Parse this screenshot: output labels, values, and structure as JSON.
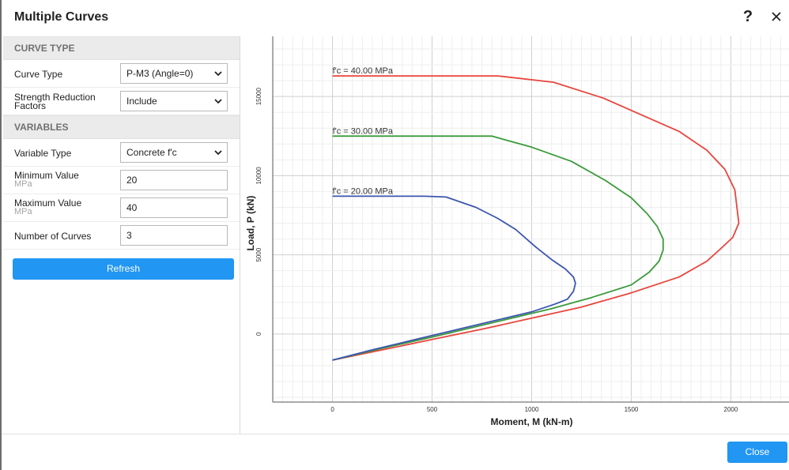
{
  "dialog": {
    "title": "Multiple Curves",
    "help_label": "?",
    "close_label": "Close"
  },
  "left_panel": {
    "curve_type_section": "CURVE TYPE",
    "curve_type_label": "Curve Type",
    "curve_type_value": "P-M3 (Angle=0)",
    "srf_label": "Strength Reduction Factors",
    "srf_label_line1": "Strength Reduction",
    "srf_label_line2": "Factors",
    "srf_value": "Include",
    "variables_section": "VARIABLES",
    "variable_type_label": "Variable Type",
    "variable_type_value": "Concrete f'c",
    "min_label": "Minimum Value",
    "min_unit": "MPa",
    "min_value": "20",
    "max_label": "Maximum Value",
    "max_unit": "MPa",
    "max_value": "40",
    "num_curves_label": "Number of Curves",
    "num_curves_value": "3",
    "refresh_label": "Refresh"
  },
  "colors": {
    "accent": "#2196f3",
    "series_40": "#e8453c",
    "series_30": "#3a9a3a",
    "series_20": "#3b55b0"
  },
  "chart_data": {
    "type": "line",
    "xlabel": "Moment, M (kN-m)",
    "ylabel": "Load, P (kN)",
    "xlim": [
      -300,
      2300
    ],
    "ylim": [
      -4300,
      18800
    ],
    "x_ticks": [
      0,
      500,
      1000,
      1500,
      2000
    ],
    "y_ticks": [
      0,
      5000,
      10000,
      15000
    ],
    "grid": true,
    "series": [
      {
        "name": "f'c = 40.00 MPa",
        "color": "#e8453c",
        "x": [
          0,
          830,
          1110,
          1360,
          1540,
          1740,
          1880,
          1970,
          2020,
          2040,
          2010,
          1950,
          1880,
          1740,
          1500,
          1250,
          1000,
          750,
          500,
          250,
          0
        ],
        "y": [
          16300,
          16300,
          15900,
          14900,
          13900,
          12800,
          11600,
          10400,
          9100,
          7000,
          6100,
          5400,
          4600,
          3600,
          2600,
          1700,
          1000,
          300,
          -350,
          -1000,
          -1650
        ]
      },
      {
        "name": "f'c = 30.00 MPa",
        "color": "#3a9a3a",
        "x": [
          0,
          800,
          1000,
          1200,
          1370,
          1500,
          1580,
          1630,
          1660,
          1660,
          1640,
          1590,
          1500,
          1300,
          1100,
          900,
          700,
          500,
          250,
          0
        ],
        "y": [
          12500,
          12500,
          11800,
          10900,
          9700,
          8600,
          7600,
          6800,
          6000,
          5300,
          4600,
          3900,
          3100,
          2300,
          1600,
          1000,
          400,
          -200,
          -900,
          -1650
        ]
      },
      {
        "name": "f'c = 20.00 MPa",
        "color": "#3b55b0",
        "x": [
          0,
          460,
          570,
          720,
          830,
          920,
          1020,
          1100,
          1170,
          1210,
          1220,
          1210,
          1180,
          1120,
          1000,
          800,
          600,
          400,
          200,
          0
        ],
        "y": [
          8700,
          8700,
          8650,
          8000,
          7300,
          6600,
          5500,
          4700,
          4100,
          3600,
          3200,
          2700,
          2200,
          1900,
          1400,
          800,
          200,
          -400,
          -1000,
          -1650
        ]
      }
    ],
    "annotations": [
      {
        "text": "f'c = 40.00 MPa",
        "x": 0,
        "y": 16300
      },
      {
        "text": "f'c = 30.00 MPa",
        "x": 0,
        "y": 12500
      },
      {
        "text": "f'c = 20.00 MPa",
        "x": 0,
        "y": 8700
      }
    ]
  }
}
